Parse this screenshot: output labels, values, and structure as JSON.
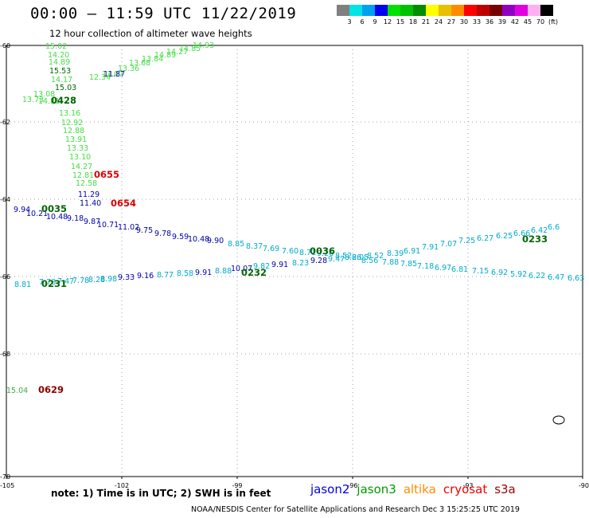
{
  "header": {
    "title": "00:00 – 11:59 UTC 11/22/2019",
    "subtitle": "12 hour collection of altimeter wave heights"
  },
  "colorbar": {
    "colors": [
      "#808080",
      "#00e4e4",
      "#00a0f0",
      "#0000f0",
      "#00e000",
      "#00c000",
      "#008c00",
      "#ffff00",
      "#e8c000",
      "#ff8c00",
      "#ff0000",
      "#c00000",
      "#780000",
      "#9000c0",
      "#e000e0",
      "#ffb0f0",
      "#000000"
    ],
    "labels": [
      "3",
      "6",
      "9",
      "12",
      "15",
      "18",
      "21",
      "24",
      "27",
      "30",
      "33",
      "36",
      "39",
      "42",
      "45",
      "70",
      "(ft)"
    ]
  },
  "axes": {
    "lon_ticks": [
      "-105",
      "-102",
      "-99",
      "-96",
      "-93",
      "-90"
    ],
    "lat_ticks": [
      "-60",
      "-62",
      "-64",
      "-66",
      "-68",
      "-70"
    ]
  },
  "satellites": [
    {
      "name": "jason2",
      "color": "#0000dd"
    },
    {
      "name": "jason3",
      "color": "#009900"
    },
    {
      "name": "altika",
      "color": "#ff8c00"
    },
    {
      "name": "cryosat",
      "color": "#ee0000"
    },
    {
      "name": "s3a",
      "color": "#990000"
    }
  ],
  "observations": {
    "track_light_green": {
      "color": "#44dd44",
      "values": [
        "15.02",
        "14.20",
        "14.89",
        "15.53",
        "14.17",
        "15.03",
        "13.73",
        "13.08",
        "14.81",
        "13.16",
        "12.92",
        "12.88",
        "13.91",
        "13.33",
        "13.10",
        "14.27",
        "12.81",
        "12.58",
        "12.34",
        "13.07",
        "13.36",
        "13.68",
        "13.84",
        "14.89",
        "14.27",
        "14.85",
        "14.93"
      ],
      "dark_values": [
        "15.53",
        "15.03"
      ]
    },
    "track_jason2": {
      "color": "#0000aa",
      "values": [
        "11.87",
        "11.29",
        "11.40",
        "9.94",
        "10.21",
        "10.48",
        "9.18",
        "9.87",
        "10.71",
        "11.02",
        "9.75",
        "9.78",
        "9.59",
        "10.48",
        "9.90"
      ]
    },
    "track_cyan_upper": {
      "color": "#00aacc",
      "values": [
        "8.85",
        "8.37",
        "7.69",
        "7.60",
        "8.71",
        "9.26",
        "8.52",
        "8.05",
        "8.52",
        "8.39",
        "6.91",
        "7.91",
        "7.07",
        "7.25",
        "6.27",
        "6.25",
        "6.66",
        "6.42",
        "6.6"
      ]
    },
    "track_cyan_lower": {
      "color": "#00aacc",
      "values": [
        "8.81",
        "7.78",
        "7.47",
        "7.78",
        "8.28",
        "8.98",
        "9.33",
        "9.16",
        "8.77",
        "8.58",
        "9.91",
        "8.88",
        "10.07",
        "9.82",
        "9.91",
        "8.23",
        "9.28",
        "9.47",
        "8.26",
        "8.56",
        "7.88",
        "7.85",
        "7.18",
        "6.97",
        "6.81",
        "7.15",
        "6.92",
        "5.92",
        "6.22",
        "6.47",
        "6.63"
      ],
      "dark_values": [
        "9.33",
        "9.16",
        "9.91",
        "10.07",
        "9.91",
        "9.28"
      ]
    },
    "isolated": {
      "value": "15.04",
      "color": "#44aa44"
    }
  },
  "pass_times": [
    {
      "label": "0428",
      "color": "#006600"
    },
    {
      "label": "0655",
      "color": "#dd0000"
    },
    {
      "label": "0654",
      "color": "#dd0000"
    },
    {
      "label": "0035",
      "color": "#006600"
    },
    {
      "label": "0036",
      "color": "#006600"
    },
    {
      "label": "0233",
      "color": "#006600"
    },
    {
      "label": "0232",
      "color": "#006600"
    },
    {
      "label": "0231",
      "color": "#006600"
    },
    {
      "label": "0629",
      "color": "#880000"
    }
  ],
  "footer": {
    "note": "note:  1) Time is in UTC;  2) SWH is in feet",
    "credit": "NOAA/NESDIS Center for Satellite Applications and Research     Dec  3 15:25:25 UTC 2019"
  }
}
